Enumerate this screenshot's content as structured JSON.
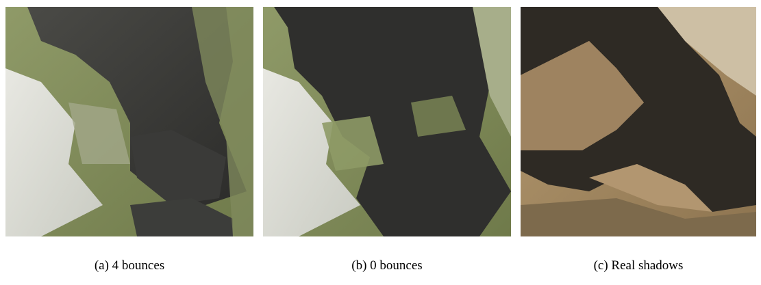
{
  "figure": {
    "panels": [
      {
        "caption": "(a) 4 bounces"
      },
      {
        "caption": "(b) 0 bounces"
      },
      {
        "caption": "(c) Real shadows"
      }
    ]
  }
}
